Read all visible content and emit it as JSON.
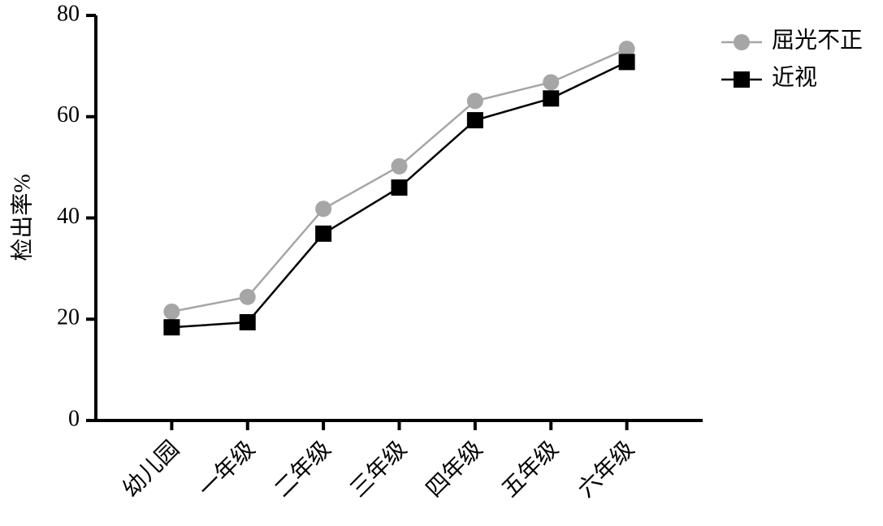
{
  "chart_data": {
    "type": "line",
    "y_label": "检出率%",
    "categories": [
      "幼儿园",
      "一年级",
      "二年级",
      "三年级",
      "四年级",
      "五年级",
      "六年级"
    ],
    "series": [
      {
        "name": "屈光不正",
        "color": "#a6a6a6",
        "marker": "circle",
        "values": [
          21.5,
          24.4,
          41.8,
          50.2,
          63.1,
          66.8,
          73.4
        ]
      },
      {
        "name": "近视",
        "color": "#000000",
        "marker": "square",
        "values": [
          18.4,
          19.4,
          36.9,
          46.0,
          59.3,
          63.6,
          70.8
        ]
      }
    ],
    "ylim": [
      0,
      80
    ],
    "yticks": [
      0,
      20,
      40,
      60,
      80
    ],
    "legend": "top-right"
  }
}
